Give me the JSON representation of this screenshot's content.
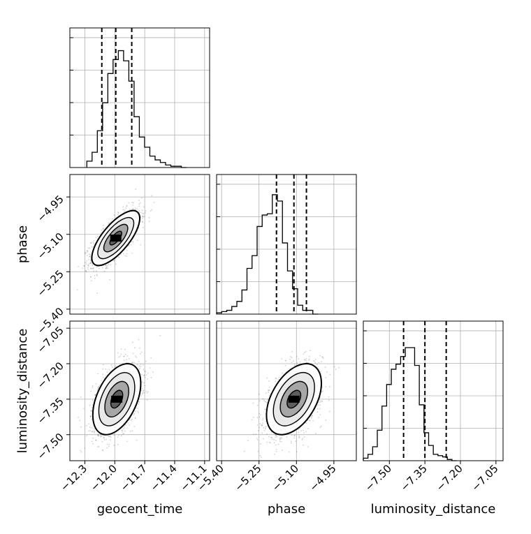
{
  "chart_data": {
    "type": "corner",
    "parameters": [
      "geocent_time",
      "phase",
      "luminosity_distance"
    ],
    "ranges": {
      "geocent_time": [
        -12.45,
        -11.05
      ],
      "phase": [
        -5.42,
        -4.86
      ],
      "luminosity_distance": [
        -7.61,
        -7.02
      ]
    },
    "ticks": {
      "geocent_time": {
        "values": [
          -12.3,
          -12.0,
          -11.7,
          -11.4,
          -11.1
        ],
        "labels": [
          "−12.3",
          "−12.0",
          "−11.7",
          "−11.4",
          "−11.1"
        ]
      },
      "phase": {
        "values": [
          -5.4,
          -5.25,
          -5.1,
          -4.95
        ],
        "labels": [
          "−5.40",
          "−5.25",
          "−5.10",
          "−4.95"
        ]
      },
      "luminosity_distance": {
        "values": [
          -7.5,
          -7.35,
          -7.2,
          -7.05
        ],
        "labels": [
          "−7.50",
          "−7.35",
          "−7.20",
          "−7.05"
        ]
      }
    },
    "quantiles": {
      "geocent_time": [
        -12.13,
        -11.99,
        -11.83
      ],
      "phase": [
        -5.18,
        -5.11,
        -5.06
      ],
      "luminosity_distance": [
        -7.44,
        -7.35,
        -7.26
      ]
    },
    "histograms": {
      "geocent_time": {
        "edges_start": -12.28,
        "bin_width": 0.0526,
        "counts": [
          0.05,
          0.12,
          0.29,
          0.51,
          0.74,
          0.85,
          0.92,
          0.84,
          0.68,
          0.4,
          0.24,
          0.16,
          0.09,
          0.06,
          0.04,
          0.02,
          0.01,
          0.01,
          0.0
        ]
      },
      "phase": {
        "edges_start": -5.42,
        "bin_width": 0.0203,
        "counts": [
          0.01,
          0.02,
          0.03,
          0.06,
          0.1,
          0.19,
          0.36,
          0.46,
          0.69,
          0.78,
          0.79,
          0.94,
          0.89,
          0.56,
          0.34,
          0.2,
          0.07,
          0.03,
          0.03,
          0.0
        ]
      },
      "luminosity_distance": {
        "edges_start": -7.61,
        "bin_width": 0.0197,
        "counts": [
          0.02,
          0.05,
          0.11,
          0.24,
          0.43,
          0.6,
          0.72,
          0.76,
          0.82,
          0.89,
          0.89,
          0.75,
          0.44,
          0.22,
          0.12,
          0.05,
          0.04,
          0.03,
          0.01,
          0.0
        ]
      }
    },
    "pairs": [
      {
        "x": "geocent_time",
        "y": "phase",
        "mean": [
          -11.99,
          -5.115
        ],
        "sd": [
          0.12,
          0.055
        ],
        "rho": 0.72
      },
      {
        "x": "geocent_time",
        "y": "luminosity_distance",
        "mean": [
          -11.98,
          -7.35
        ],
        "sd": [
          0.12,
          0.075
        ],
        "rho": 0.45
      },
      {
        "x": "phase",
        "y": "luminosity_distance",
        "mean": [
          -5.11,
          -7.35
        ],
        "sd": [
          0.055,
          0.075
        ],
        "rho": 0.45
      }
    ],
    "contour_levels_sigma": [
      0.5,
      1.0,
      1.5,
      2.0
    ],
    "grid": true,
    "colors": {
      "line": "#000000",
      "grid": "#b0b0b0",
      "points": "#000000"
    }
  }
}
